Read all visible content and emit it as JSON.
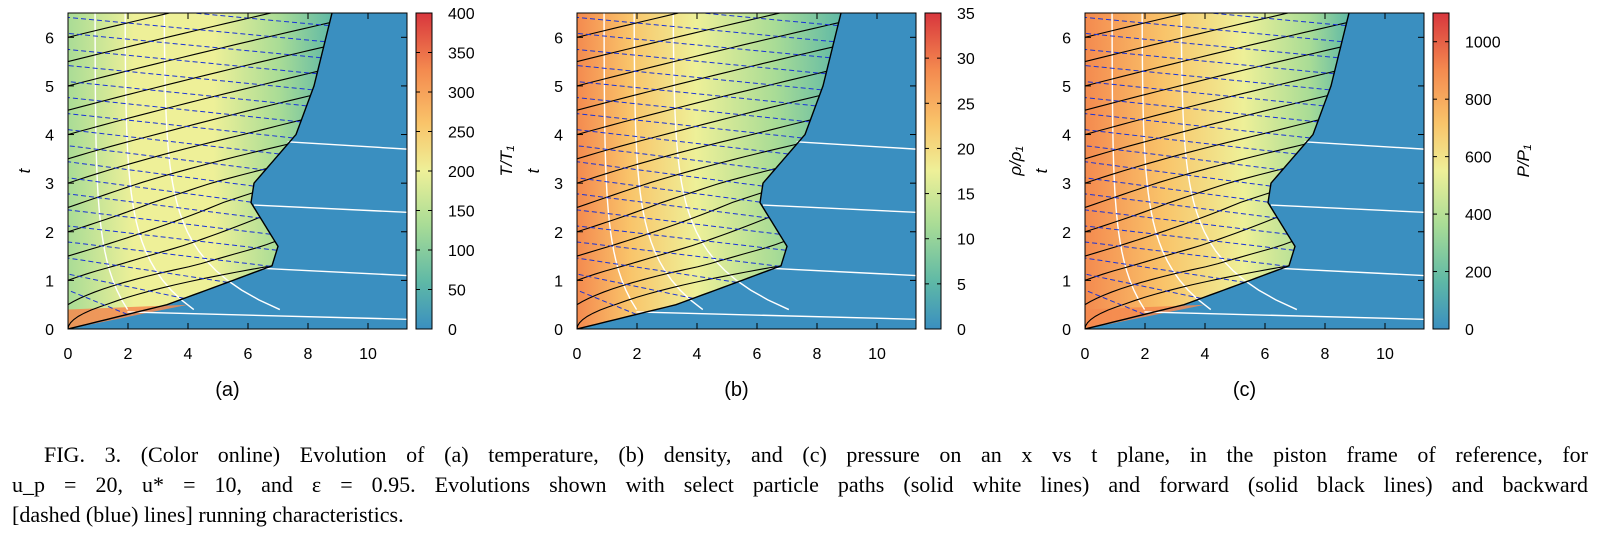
{
  "figure": {
    "caption_lines": [
      "FIG. 3. (Color online)  Evolution of (a) temperature, (b) density, and (c) pressure on an x vs t plane, in the piston frame of reference, for",
      "u_p = 20, u* = 10, and ε = 0.95. Evolutions shown with select particle paths (solid white lines) and forward (solid black lines) and backward",
      "[dashed (blue) lines] running characteristics."
    ]
  },
  "colors": {
    "low": "#3a8fc0",
    "mid1": "#5fb9a6",
    "mid2": "#a9dc96",
    "mid3": "#eef098",
    "mid4": "#f9c46a",
    "mid5": "#f48a4f",
    "high": "#d8363d",
    "particle_path": "#ffffff",
    "forward_char": "#000000",
    "backward_char": "#1a33d6"
  },
  "chart_data": [
    {
      "type": "heatmap",
      "panel_label": "(a)",
      "xlabel": "",
      "ylabel": "t",
      "xlim": [
        0,
        11.3
      ],
      "ylim": [
        0,
        6.5
      ],
      "xticks": [
        "0",
        "2",
        "4",
        "6",
        "8",
        "10"
      ],
      "yticks": [
        "0",
        "1",
        "2",
        "3",
        "4",
        "5",
        "6"
      ],
      "colorbar_label": "T/T₁",
      "colorbar_ticks": [
        "0",
        "50",
        "100",
        "150",
        "200",
        "250",
        "300",
        "350",
        "400"
      ],
      "zlim": [
        0,
        400
      ]
    },
    {
      "type": "heatmap",
      "panel_label": "(b)",
      "xlabel": "",
      "ylabel": "t",
      "xlim": [
        0,
        11.3
      ],
      "ylim": [
        0,
        6.5
      ],
      "xticks": [
        "0",
        "2",
        "4",
        "6",
        "8",
        "10"
      ],
      "yticks": [
        "0",
        "1",
        "2",
        "3",
        "4",
        "5",
        "6"
      ],
      "colorbar_label": "ρ/ρ₁",
      "colorbar_ticks": [
        "0",
        "5",
        "10",
        "15",
        "20",
        "25",
        "30",
        "35"
      ],
      "zlim": [
        0,
        35
      ]
    },
    {
      "type": "heatmap",
      "panel_label": "(c)",
      "xlabel": "",
      "ylabel": "t",
      "xlim": [
        0,
        11.3
      ],
      "ylim": [
        0,
        6.5
      ],
      "xticks": [
        "0",
        "2",
        "4",
        "6",
        "8",
        "10"
      ],
      "yticks": [
        "0",
        "1",
        "2",
        "3",
        "4",
        "5",
        "6"
      ],
      "colorbar_label": "P/P₁",
      "colorbar_ticks": [
        "0",
        "200",
        "400",
        "600",
        "800",
        "1000"
      ],
      "zlim": [
        0,
        1100
      ]
    }
  ]
}
